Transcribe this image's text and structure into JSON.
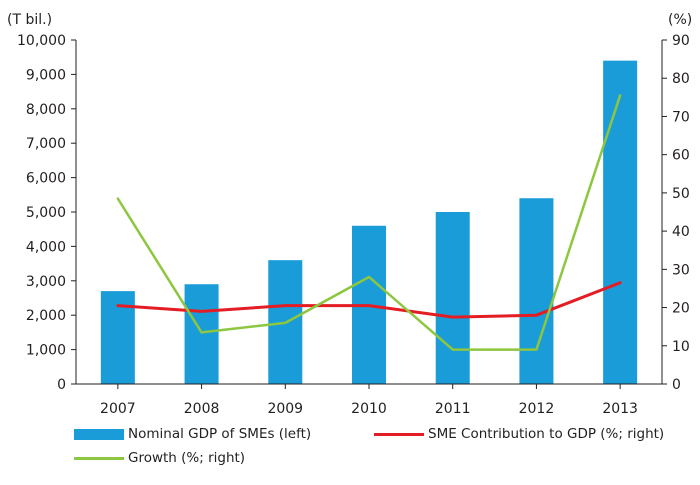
{
  "chart_data": {
    "type": "bar+line",
    "title": "",
    "categories": [
      "2007",
      "2008",
      "2009",
      "2010",
      "2011",
      "2012",
      "2013"
    ],
    "left_axis": {
      "label": "(T bil.)",
      "range": [
        0,
        10000
      ],
      "ticks": [
        "0",
        "1,000",
        "2,000",
        "3,000",
        "4,000",
        "5,000",
        "6,000",
        "7,000",
        "8,000",
        "9,000",
        "10,000"
      ]
    },
    "right_axis": {
      "label": "(%)",
      "range": [
        0,
        90
      ],
      "ticks": [
        "0",
        "10",
        "20",
        "30",
        "40",
        "50",
        "60",
        "70",
        "80",
        "90"
      ]
    },
    "series": [
      {
        "name": "Nominal GDP of SMEs (left)",
        "type": "bar",
        "axis": "left",
        "color": "#1a9cd8",
        "values": [
          2700,
          2900,
          3600,
          4600,
          5000,
          5400,
          9400
        ]
      },
      {
        "name": "SME Contribution to GDP (%; right)",
        "type": "line",
        "axis": "right",
        "color": "#e31d23",
        "values": [
          20.5,
          19,
          20.5,
          20.5,
          17.5,
          18,
          26.5
        ]
      },
      {
        "name": "Growth (%; right)",
        "type": "line",
        "axis": "right",
        "color": "#8dc63f",
        "values": [
          48.5,
          13.5,
          16,
          28,
          9,
          9,
          75.5
        ]
      }
    ],
    "legend_position": "bottom"
  }
}
